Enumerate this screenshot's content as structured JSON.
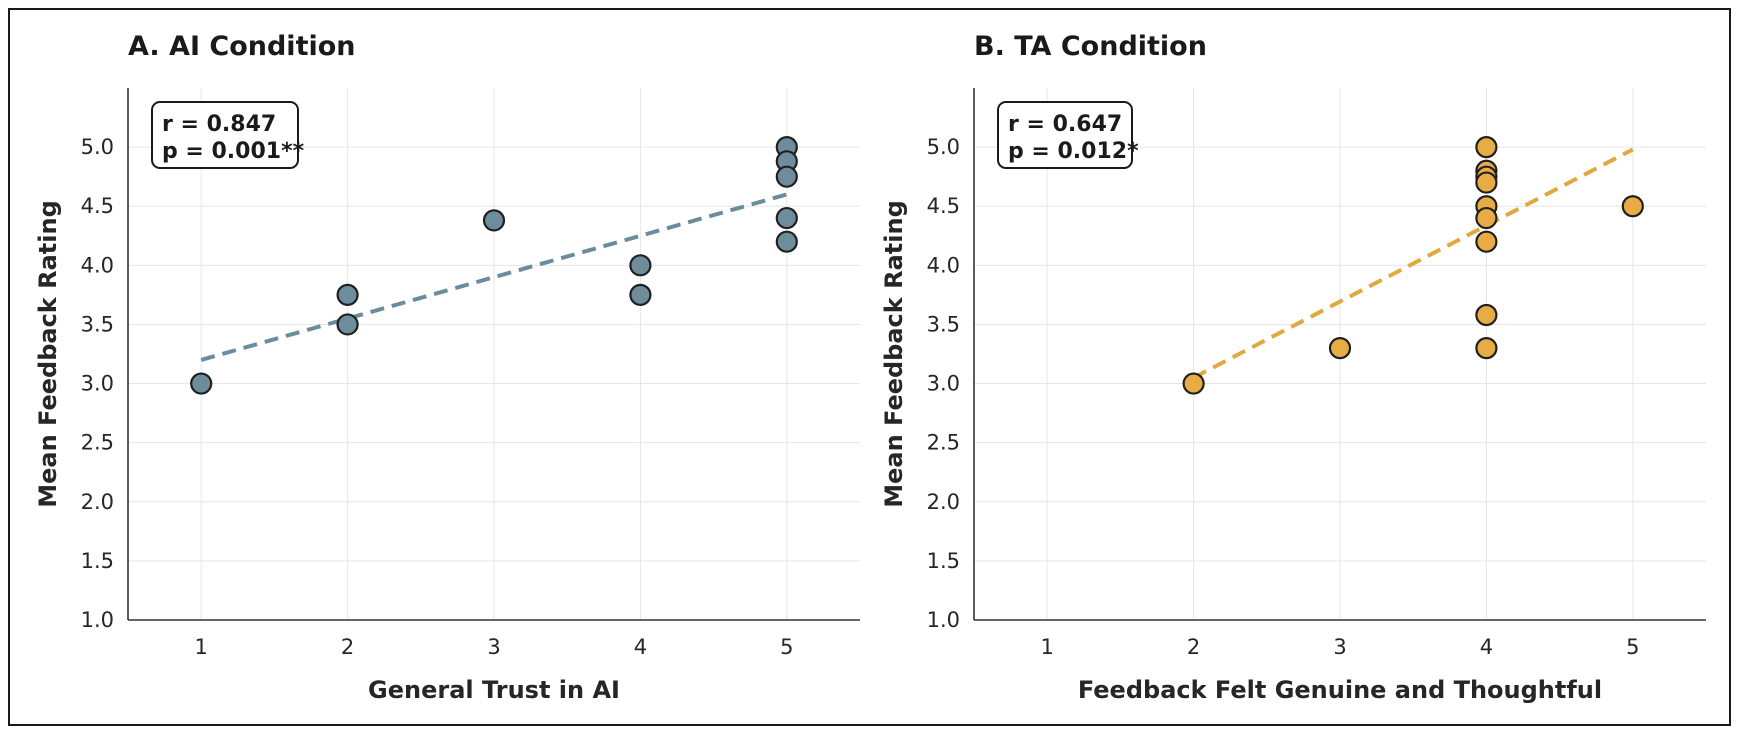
{
  "chart_data": [
    {
      "type": "scatter",
      "title": "A. AI Condition",
      "xlabel": "General Trust in AI",
      "ylabel": "Mean Feedback Rating",
      "xlim": [
        0.5,
        5.5
      ],
      "ylim": [
        1.0,
        5.5
      ],
      "xticks": [
        "1",
        "2",
        "3",
        "4",
        "5"
      ],
      "yticks": [
        "1.0",
        "1.5",
        "2.0",
        "2.5",
        "3.0",
        "3.5",
        "4.0",
        "4.5",
        "5.0"
      ],
      "grid": true,
      "color": "#6e8d9c",
      "line_color": "#6b8c9c",
      "points": [
        {
          "x": 1,
          "y": 3.0
        },
        {
          "x": 2,
          "y": 3.75
        },
        {
          "x": 2,
          "y": 3.5
        },
        {
          "x": 3,
          "y": 4.38
        },
        {
          "x": 4,
          "y": 4.0
        },
        {
          "x": 4,
          "y": 3.75
        },
        {
          "x": 5,
          "y": 5.0
        },
        {
          "x": 5,
          "y": 4.88
        },
        {
          "x": 5,
          "y": 4.75
        },
        {
          "x": 5,
          "y": 4.4
        },
        {
          "x": 5,
          "y": 4.2
        }
      ],
      "trendline": {
        "x": [
          1,
          5
        ],
        "y": [
          3.2,
          4.6
        ]
      },
      "stats": {
        "r": "r = 0.847",
        "p": "p = 0.001**"
      },
      "stats_position": "top-left"
    },
    {
      "type": "scatter",
      "title": "B. TA Condition",
      "xlabel": "Feedback Felt Genuine and Thoughtful",
      "ylabel": "Mean Feedback Rating",
      "xlim": [
        0.5,
        5.5
      ],
      "ylim": [
        1.0,
        5.5
      ],
      "xticks": [
        "1",
        "2",
        "3",
        "4",
        "5"
      ],
      "yticks": [
        "1.0",
        "1.5",
        "2.0",
        "2.5",
        "3.0",
        "3.5",
        "4.0",
        "4.5",
        "5.0"
      ],
      "grid": true,
      "color": "#e8ac45",
      "line_color": "#e0a93f",
      "points": [
        {
          "x": 2,
          "y": 3.0
        },
        {
          "x": 3,
          "y": 3.3
        },
        {
          "x": 4,
          "y": 5.0
        },
        {
          "x": 4,
          "y": 4.8
        },
        {
          "x": 4,
          "y": 4.75
        },
        {
          "x": 4,
          "y": 4.7
        },
        {
          "x": 4,
          "y": 4.5
        },
        {
          "x": 4,
          "y": 4.4
        },
        {
          "x": 4,
          "y": 4.2
        },
        {
          "x": 4,
          "y": 3.58
        },
        {
          "x": 4,
          "y": 3.3
        },
        {
          "x": 5,
          "y": 4.5
        }
      ],
      "trendline": {
        "x": [
          2,
          5
        ],
        "y": [
          3.05,
          4.98
        ]
      },
      "stats": {
        "r": "r = 0.647",
        "p": "p = 0.012*"
      },
      "stats_position": "top-left"
    }
  ]
}
